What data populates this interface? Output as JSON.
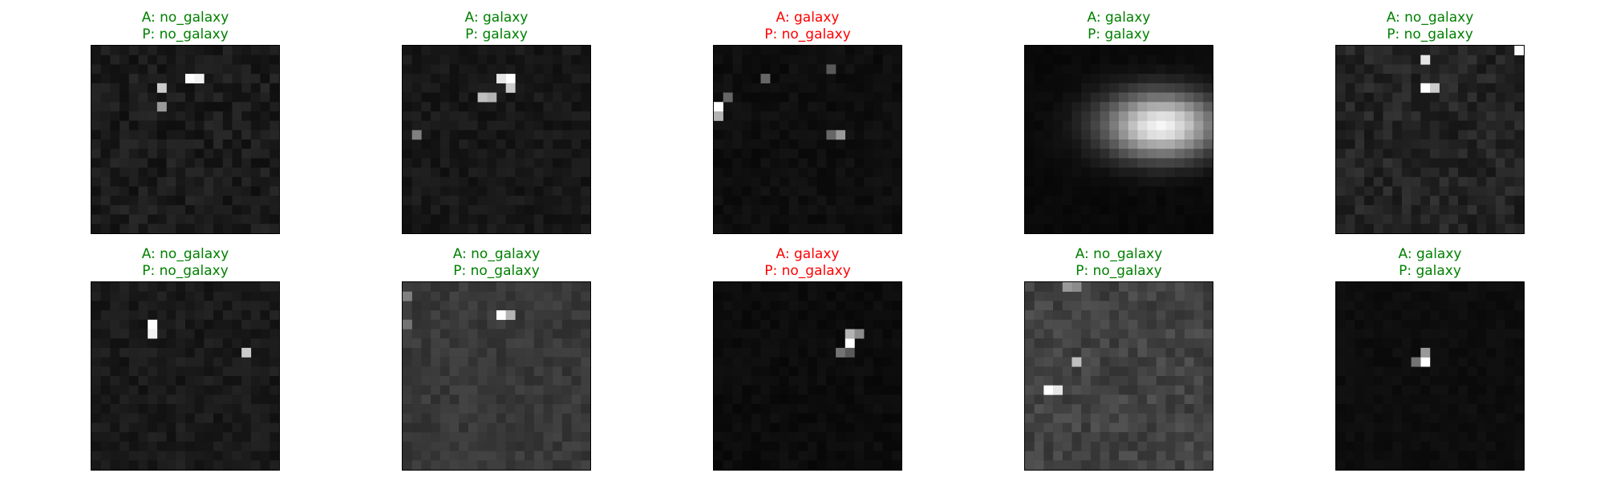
{
  "figure": {
    "colors": {
      "correct": "#008000",
      "wrong": "#ff0000",
      "frame": "#000000"
    },
    "panels": [
      {
        "actual": "A: no_galaxy",
        "predicted": "P: no_galaxy",
        "correct": true
      },
      {
        "actual": "A: galaxy",
        "predicted": "P: galaxy",
        "correct": true
      },
      {
        "actual": "A: galaxy",
        "predicted": "P: no_galaxy",
        "correct": false
      },
      {
        "actual": "A: galaxy",
        "predicted": "P: galaxy",
        "correct": true
      },
      {
        "actual": "A: no_galaxy",
        "predicted": "P: no_galaxy",
        "correct": true
      },
      {
        "actual": "A: no_galaxy",
        "predicted": "P: no_galaxy",
        "correct": true
      },
      {
        "actual": "A: no_galaxy",
        "predicted": "P: no_galaxy",
        "correct": true
      },
      {
        "actual": "A: galaxy",
        "predicted": "P: no_galaxy",
        "correct": false
      },
      {
        "actual": "A: no_galaxy",
        "predicted": "P: no_galaxy",
        "correct": true
      },
      {
        "actual": "A: galaxy",
        "predicted": "P: galaxy",
        "correct": true
      }
    ]
  }
}
